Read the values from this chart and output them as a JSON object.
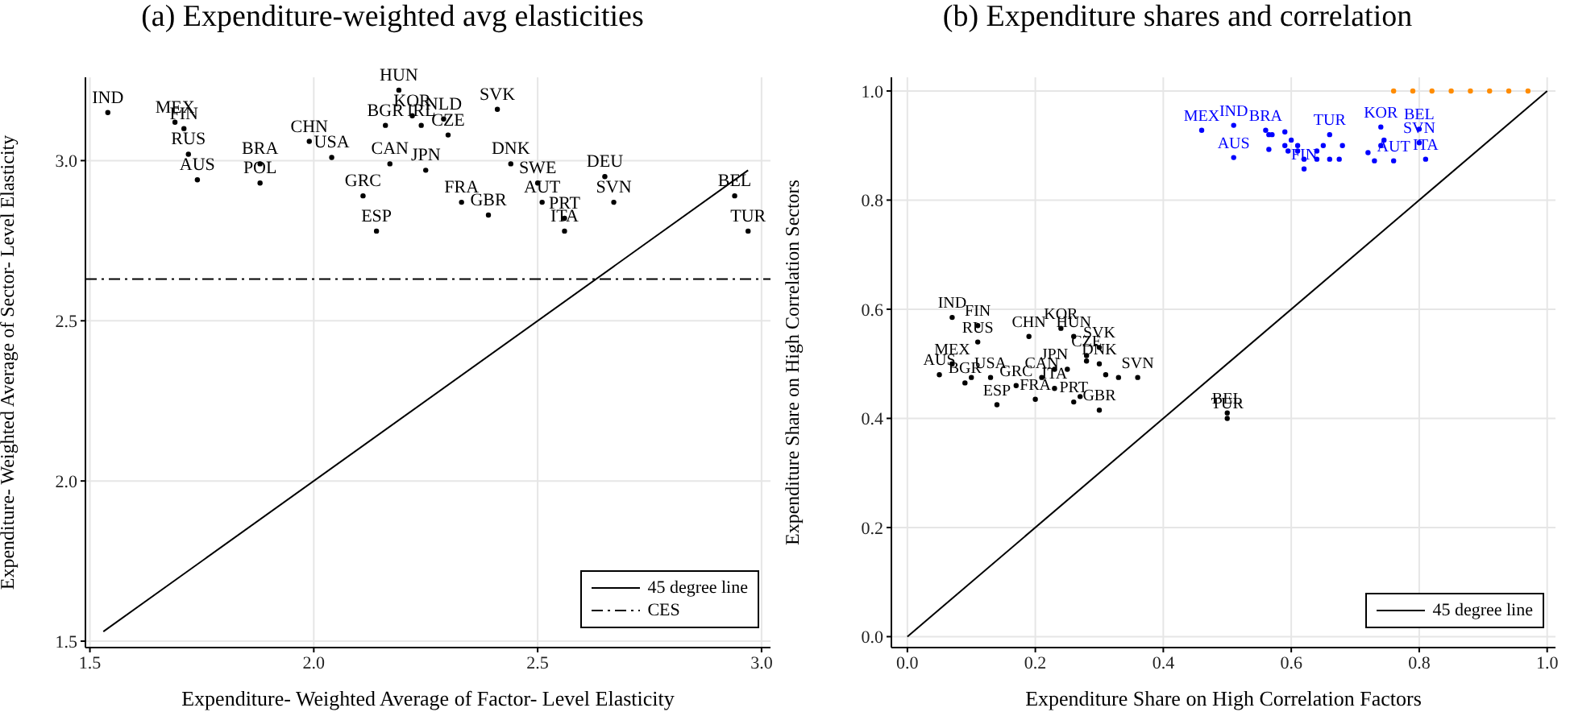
{
  "chart_data": [
    {
      "type": "scatter",
      "title": "(a) Expenditure-weighted avg elasticities",
      "xlabel": "Expenditure- Weighted Average of Factor- Level Elasticity",
      "ylabel": "Expenditure- Weighted Average of Sector- Level Elasticity",
      "xlim": [
        1.49,
        3.02
      ],
      "ylim": [
        1.48,
        3.26
      ],
      "xticks": [
        {
          "value": 1.5,
          "label": "1.5"
        },
        {
          "value": 2,
          "label": "2.0"
        },
        {
          "value": 2.5,
          "label": "2.5"
        },
        {
          "value": 3,
          "label": "3.0"
        }
      ],
      "yticks": [
        {
          "value": 1.5,
          "label": "1.5"
        },
        {
          "value": 2,
          "label": "2.0"
        },
        {
          "value": 2.5,
          "label": "2.5"
        },
        {
          "value": 3,
          "label": "3.0"
        }
      ],
      "grid": true,
      "legend": "bottom right",
      "series": [
        {
          "type": "scatter",
          "marker": "circle",
          "color": "#000000",
          "x": [
            1.54,
            1.69,
            1.71,
            1.72,
            1.74,
            1.88,
            1.88,
            1.99,
            2.04,
            2.19,
            2.22,
            2.29,
            2.24,
            2.16,
            2.3,
            2.41,
            2.17,
            2.25,
            2.11,
            2.14,
            2.44,
            2.5,
            2.65,
            2.33,
            2.39,
            2.51,
            2.56,
            2.56,
            2.67,
            2.94,
            2.97
          ],
          "values": [
            3.15,
            3.12,
            3.1,
            3.02,
            2.94,
            2.99,
            2.93,
            3.06,
            3.01,
            3.22,
            3.14,
            3.13,
            3.11,
            3.11,
            3.08,
            3.16,
            2.99,
            2.97,
            2.89,
            2.78,
            2.99,
            2.93,
            2.95,
            2.87,
            2.83,
            2.87,
            2.82,
            2.78,
            2.87,
            2.89,
            2.78
          ],
          "value_labels": [
            "IND",
            "MEX",
            "FIN",
            "RUS",
            "AUS",
            "BRA",
            "POL",
            "CHN",
            "USA",
            "HUN",
            "KOR",
            "NLD",
            "IRL",
            "BGR",
            "CZE",
            "SVK",
            "CAN",
            "JPN",
            "GRC",
            "ESP",
            "DNK",
            "SWE",
            "DEU",
            "FRA",
            "GBR",
            "AUT",
            "PRT",
            "ITA",
            "SVN",
            "BEL",
            "TUR"
          ]
        },
        {
          "type": "line",
          "name": "45 degree line",
          "marker": "none",
          "color": "#000000",
          "line_style": "solid",
          "x": [
            1.53,
            2.97
          ],
          "values": [
            1.53,
            2.97
          ]
        },
        {
          "type": "line",
          "name": "CES",
          "marker": "none",
          "color": "#000000",
          "line_style": "dashed",
          "x": [
            1.49,
            3.02
          ],
          "values": [
            2.63,
            2.63
          ]
        }
      ]
    },
    {
      "type": "scatter",
      "title": "(b) Expenditure shares and correlation",
      "xlabel": "Expenditure Share on High Correlation Factors",
      "ylabel": "Expenditure Share on High Correlation Sectors",
      "xlim": [
        -0.025,
        1.013
      ],
      "ylim": [
        -0.02,
        1.025
      ],
      "xticks": [
        {
          "value": 0,
          "label": "0.0"
        },
        {
          "value": 0.2,
          "label": "0.2"
        },
        {
          "value": 0.4,
          "label": "0.4"
        },
        {
          "value": 0.6,
          "label": "0.6"
        },
        {
          "value": 0.8,
          "label": "0.8"
        },
        {
          "value": 1,
          "label": "1.0"
        }
      ],
      "yticks": [
        {
          "value": 0,
          "label": "0.0"
        },
        {
          "value": 0.2,
          "label": "0.2"
        },
        {
          "value": 0.4,
          "label": "0.4"
        },
        {
          "value": 0.6,
          "label": "0.6"
        },
        {
          "value": 0.8,
          "label": "0.8"
        },
        {
          "value": 1,
          "label": "1.0"
        }
      ],
      "grid": true,
      "legend": "bottom right",
      "series": [
        {
          "type": "scatter",
          "marker": "circle",
          "color": "#000000",
          "x": [
            0.07,
            0.11,
            0.11,
            0.19,
            0.24,
            0.26,
            0.3,
            0.28,
            0.07,
            0.05,
            0.09,
            0.13,
            0.23,
            0.21,
            0.3,
            0.28,
            0.36,
            0.33,
            0.17,
            0.23,
            0.2,
            0.14,
            0.26,
            0.3,
            0.5,
            0.5,
            0.1,
            0.25,
            0.31,
            0.27
          ],
          "values": [
            0.585,
            0.57,
            0.54,
            0.55,
            0.565,
            0.55,
            0.53,
            0.515,
            0.5,
            0.48,
            0.465,
            0.475,
            0.49,
            0.475,
            0.5,
            0.505,
            0.475,
            0.475,
            0.46,
            0.455,
            0.435,
            0.425,
            0.43,
            0.415,
            0.41,
            0.4,
            0.475,
            0.49,
            0.48,
            0.44
          ],
          "value_labels": [
            "IND",
            "FIN",
            "RUS",
            "CHN",
            "KOR",
            "HUN",
            "SVK",
            "CZE",
            "MEX",
            "AUS",
            "BGR",
            "USA",
            "JPN",
            "CAN",
            "DNK",
            null,
            "SVN",
            null,
            "GRC",
            "ITA",
            "FRA",
            "ESP",
            "PRT",
            "GBR",
            "BEL",
            "TUR",
            null,
            null,
            null,
            null
          ]
        },
        {
          "type": "scatter",
          "marker": "circle",
          "color": "#0000ff",
          "x": [
            0.46,
            0.51,
            0.51,
            0.56,
            0.565,
            0.57,
            0.66,
            0.62,
            0.74,
            0.8,
            0.8,
            0.81,
            0.76,
            0.74,
            0.72,
            0.73,
            0.66,
            0.62,
            0.68,
            0.745,
            0.6,
            0.61,
            0.65,
            0.64,
            0.59,
            0.61,
            0.64,
            0.675,
            0.565,
            0.59,
            0.595
          ],
          "values": [
            0.928,
            0.937,
            0.878,
            0.928,
            0.893,
            0.92,
            0.92,
            0.857,
            0.934,
            0.93,
            0.905,
            0.875,
            0.872,
            0.9,
            0.887,
            0.872,
            0.875,
            0.875,
            0.9,
            0.91,
            0.91,
            0.9,
            0.9,
            0.89,
            0.9,
            0.89,
            0.875,
            0.875,
            0.92,
            0.925,
            0.89
          ],
          "value_labels": [
            "MEX",
            "IND",
            "AUS",
            "BRA",
            null,
            null,
            "TUR",
            "FIN",
            "KOR",
            "BEL",
            "SVN",
            "ITA",
            "AUT",
            null,
            null,
            null,
            null,
            null,
            null,
            null,
            null,
            null,
            null,
            null,
            null,
            null,
            null,
            null,
            null,
            null,
            null
          ]
        },
        {
          "type": "scatter",
          "marker": "circle",
          "color": "#ff8c00",
          "x": [
            0.76,
            0.79,
            0.82,
            0.85,
            0.88,
            0.91,
            0.94,
            0.97
          ],
          "values": [
            1,
            1,
            1,
            1,
            1,
            1,
            1,
            1
          ]
        },
        {
          "type": "line",
          "name": "45 degree line",
          "marker": "none",
          "color": "#000000",
          "line_style": "solid",
          "x": [
            0,
            1
          ],
          "values": [
            0,
            1
          ]
        }
      ]
    }
  ]
}
